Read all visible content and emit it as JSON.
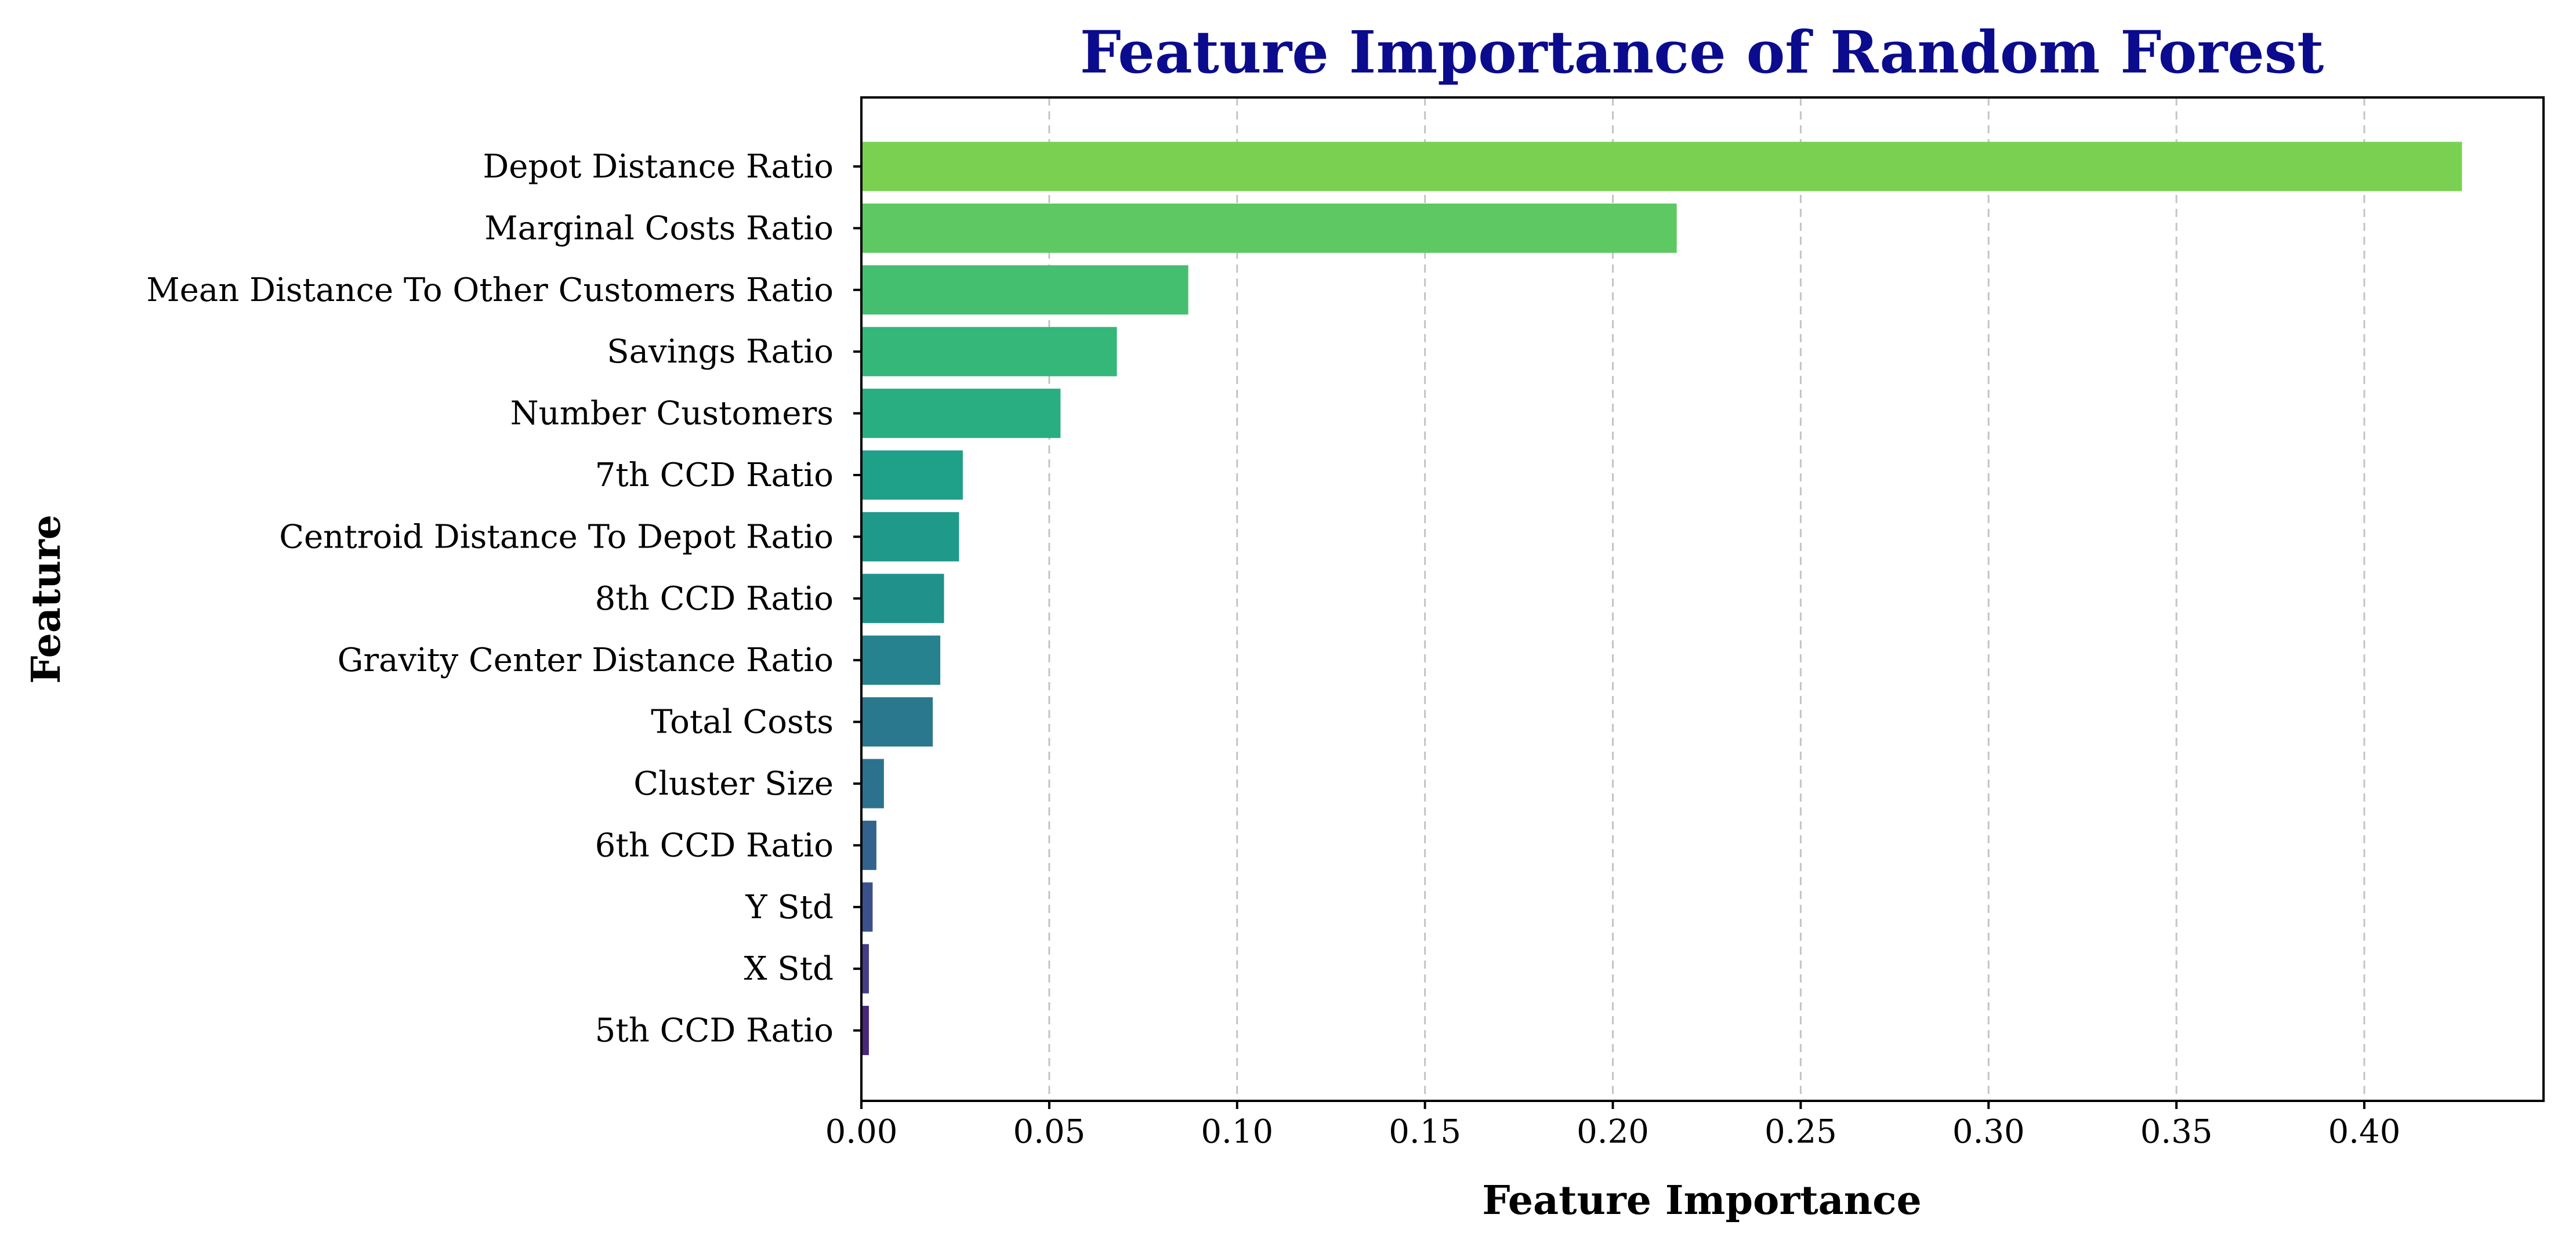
{
  "chart_data": {
    "type": "bar",
    "orientation": "horizontal",
    "title": "Feature Importance of Random Forest",
    "xlabel": "Feature Importance",
    "ylabel": "Feature",
    "xlim": [
      0,
      0.4477
    ],
    "x_ticks": [
      "0.00",
      "0.05",
      "0.10",
      "0.15",
      "0.20",
      "0.25",
      "0.30",
      "0.35",
      "0.40"
    ],
    "grid": "vertical dashed",
    "legend": "none",
    "colormap": "viridis",
    "categories": [
      "Depot Distance Ratio",
      "Marginal Costs Ratio",
      "Mean Distance To Other Customers Ratio",
      "Savings Ratio",
      "Number Customers",
      "7th CCD Ratio",
      "Centroid Distance To Depot Ratio",
      "8th CCD Ratio",
      "Gravity Center Distance Ratio",
      "Total Costs",
      "Cluster Size",
      "6th CCD Ratio",
      "Y Std",
      "X Std",
      "5th CCD Ratio"
    ],
    "values": [
      0.426,
      0.217,
      0.087,
      0.068,
      0.053,
      0.027,
      0.026,
      0.022,
      0.021,
      0.019,
      0.006,
      0.004,
      0.003,
      0.002,
      0.002
    ],
    "colors": [
      "#7ad151",
      "#5ec962",
      "#44bf70",
      "#35b779",
      "#28ae80",
      "#1fa088",
      "#1f9a8a",
      "#21918c",
      "#26828e",
      "#2a788e",
      "#2c728e",
      "#33638d",
      "#3b518b",
      "#433e85",
      "#482878"
    ]
  }
}
